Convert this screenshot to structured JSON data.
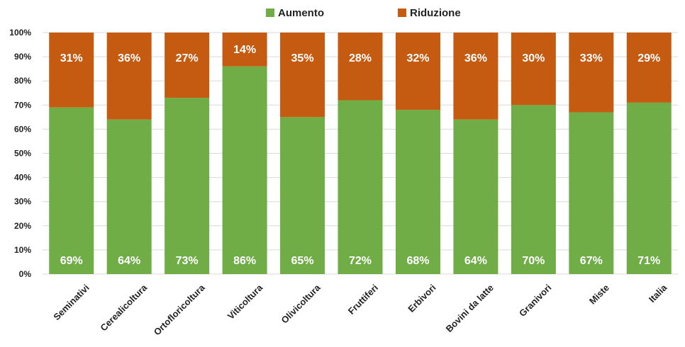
{
  "colors": {
    "aumento": "#70ad47",
    "riduzione": "#c55a11",
    "grid": "#d9d9d9",
    "axis_text": "#222222",
    "data_label": "#ffffff"
  },
  "legend": {
    "items": [
      {
        "label": "Aumento",
        "color": "#70ad47"
      },
      {
        "label": "Riduzione",
        "color": "#c55a11"
      }
    ]
  },
  "chart_data": {
    "type": "bar",
    "stacked": true,
    "percent": true,
    "legend_position": "top-center",
    "grid": true,
    "ylim": [
      0,
      100
    ],
    "y_ticks": [
      "0%",
      "10%",
      "20%",
      "30%",
      "40%",
      "50%",
      "60%",
      "70%",
      "80%",
      "90%",
      "100%"
    ],
    "categories": [
      "Seminativi",
      "Cerealicoltura",
      "Ortofloricoltura",
      "Viticoltura",
      "Olivicoltura",
      "Fruttiferi",
      "Erbivori",
      "Bovini da latte",
      "Granivori",
      "Miste",
      "Italia"
    ],
    "series": [
      {
        "name": "Aumento",
        "values": [
          69,
          64,
          73,
          86,
          65,
          72,
          68,
          64,
          70,
          67,
          71
        ],
        "labels": [
          "69%",
          "64%",
          "73%",
          "86%",
          "65%",
          "72%",
          "68%",
          "64%",
          "70%",
          "67%",
          "71%"
        ]
      },
      {
        "name": "Riduzione",
        "values": [
          31,
          36,
          27,
          14,
          35,
          28,
          32,
          36,
          30,
          33,
          29
        ],
        "labels": [
          "31%",
          "36%",
          "27%",
          "14%",
          "35%",
          "28%",
          "32%",
          "36%",
          "30%",
          "33%",
          "29%"
        ]
      }
    ]
  }
}
